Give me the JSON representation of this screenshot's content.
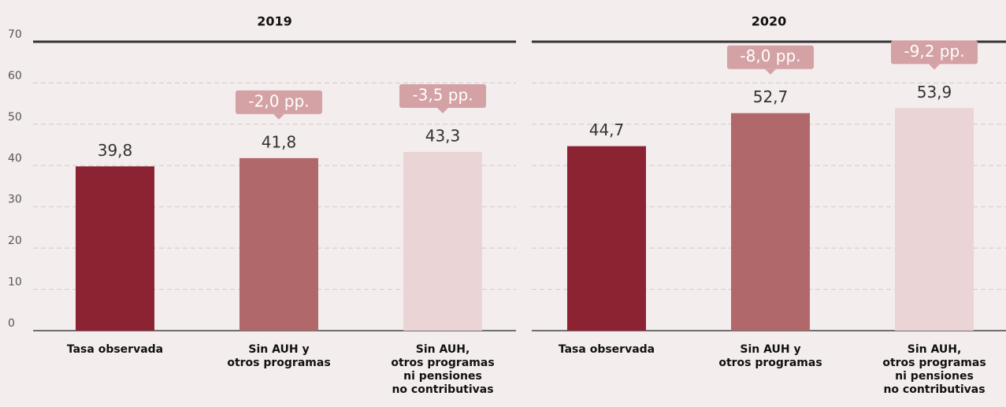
{
  "chart_data": [
    {
      "type": "bar",
      "title": "2019",
      "categories": [
        "Tasa observada",
        "Sin AUH y\notros programas",
        "Sin AUH,\notros programas\nni pensiones\nno contributivas"
      ],
      "values": [
        39.8,
        41.8,
        43.3
      ],
      "value_labels": [
        "39,8",
        "41,8",
        "43,3"
      ],
      "annotations": [
        null,
        "-2,0 pp.",
        "-3,5 pp."
      ],
      "colors": [
        "#8b2333",
        "#b0686a",
        "#ead4d5"
      ],
      "ylim": [
        0,
        70
      ],
      "yticks": [
        0,
        10,
        20,
        30,
        40,
        50,
        60,
        70
      ],
      "grid": true
    },
    {
      "type": "bar",
      "title": "2020",
      "categories": [
        "Tasa observada",
        "Sin AUH y\notros programas",
        "Sin AUH,\notros programas\nni pensiones\nno contributivas"
      ],
      "values": [
        44.7,
        52.7,
        53.9
      ],
      "value_labels": [
        "44,7",
        "52,7",
        "53,9"
      ],
      "annotations": [
        null,
        "-8,0 pp.",
        "-9,2 pp."
      ],
      "colors": [
        "#8b2333",
        "#b0686a",
        "#ead4d5"
      ],
      "ylim": [
        0,
        70
      ],
      "yticks": [
        0,
        10,
        20,
        30,
        40,
        50,
        60,
        70
      ],
      "grid": true
    }
  ]
}
